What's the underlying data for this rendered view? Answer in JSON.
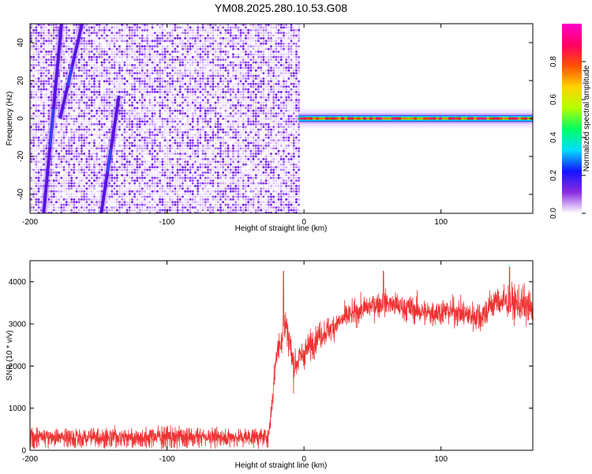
{
  "title": "YM08.2025.280.10.53.G08",
  "chart_data": [
    {
      "type": "heatmap",
      "name": "spectrogram",
      "xlabel": "Height of straight line (km)",
      "ylabel": "Frequency (Hz)",
      "xlim": [
        -200,
        167
      ],
      "ylim": [
        -50,
        50
      ],
      "x_ticks": [
        -200,
        -100,
        0,
        100
      ],
      "y_ticks": [
        -40,
        -20,
        0,
        20,
        40
      ],
      "noise_region_x": [
        -200,
        -4
      ],
      "tone_region_x": [
        -4,
        167
      ],
      "tone_frequency_hz": 0,
      "streaks": [
        {
          "x_bottom": -190,
          "x_top": -177,
          "y_bottom": -50,
          "y_top": 50
        },
        {
          "x_bottom": -148,
          "x_top": -135,
          "y_bottom": -50,
          "y_top": 12
        },
        {
          "x_bottom": -178,
          "x_top": -162,
          "y_bottom": 0,
          "y_top": 50
        }
      ],
      "colorbar": {
        "label": "Normalized spectral amplitude",
        "range": [
          0,
          1
        ],
        "ticks": [
          "0.0",
          "0.2",
          "0.4",
          "0.6",
          "0.8"
        ],
        "colors": [
          "#ffffff",
          "#8a2be2",
          "#1414ff",
          "#00dcff",
          "#00ff64",
          "#b4ff00",
          "#ffd200",
          "#ff5000",
          "#ff0064",
          "#ff00c8"
        ]
      }
    },
    {
      "type": "line",
      "name": "snr",
      "xlabel": "Height of straight line (km)",
      "ylabel": "SNR (10 * v/v)",
      "xlim": [
        -200,
        167
      ],
      "ylim": [
        0,
        4500
      ],
      "x_ticks": [
        -200,
        -100,
        0,
        100
      ],
      "y_ticks": [
        0,
        1000,
        2000,
        3000,
        4000
      ],
      "color": "#ee3333",
      "series": [
        {
          "name": "SNR",
          "x": [
            -200,
            -180,
            -160,
            -140,
            -120,
            -100,
            -80,
            -60,
            -40,
            -30,
            -26,
            -24,
            -20,
            -16,
            -13,
            -10,
            -8,
            -5,
            0,
            10,
            20,
            30,
            40,
            50,
            60,
            70,
            80,
            90,
            100,
            110,
            120,
            130,
            140,
            150,
            160,
            167
          ],
          "mean": [
            340,
            330,
            320,
            320,
            330,
            350,
            340,
            320,
            320,
            320,
            320,
            900,
            2300,
            2700,
            3000,
            2500,
            2000,
            2100,
            2300,
            2700,
            2900,
            3150,
            3300,
            3450,
            3500,
            3400,
            3350,
            3250,
            3300,
            3300,
            3200,
            3200,
            3550,
            3500,
            3450,
            3300
          ],
          "noise": [
            250,
            260,
            270,
            270,
            280,
            280,
            270,
            260,
            250,
            250,
            250,
            350,
            400,
            500,
            650,
            600,
            550,
            500,
            450,
            420,
            380,
            380,
            360,
            380,
            380,
            400,
            400,
            420,
            400,
            400,
            450,
            500,
            450,
            500,
            550,
            600
          ],
          "peaks": [
            {
              "x": -15,
              "y": 4250
            },
            {
              "x": 58,
              "y": 4250
            },
            {
              "x": 150,
              "y": 4350
            }
          ]
        }
      ]
    }
  ]
}
